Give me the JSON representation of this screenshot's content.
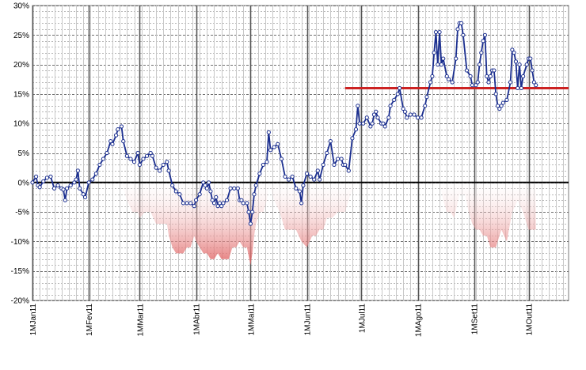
{
  "chart_data": {
    "type": "line",
    "y_ticks": [
      "30%",
      "25%",
      "20%",
      "15%",
      "10%",
      "5%",
      "0%",
      "-5%",
      "-10%",
      "-15%",
      "-20%"
    ],
    "ylim": [
      -20,
      30
    ],
    "x_ticks": [
      "1MJan11",
      "1MFev11",
      "1MMar11",
      "1MAbr11",
      "1MMai11",
      "1MJun11",
      "1MJul11",
      "1MAgo11",
      "1MSet11",
      "1MOut11"
    ],
    "xlim": [
      0,
      295
    ],
    "x_tick_positions": [
      0,
      31,
      59,
      90,
      120,
      151,
      181,
      212,
      243,
      273
    ],
    "grid": true,
    "reference_line": {
      "value": 16,
      "from_x": 172,
      "to_x": 295,
      "color": "#cc2222"
    },
    "colors": {
      "series": "#1a2e8f",
      "drawdown": "#e06060",
      "grid": "#7a7a7a",
      "reference": "#cc2222"
    },
    "series": [
      {
        "points": [
          [
            0,
            0
          ],
          [
            2,
            1
          ],
          [
            3,
            -0.5
          ],
          [
            4,
            -0.8
          ],
          [
            6,
            0.2
          ],
          [
            8,
            0.8
          ],
          [
            10,
            1
          ],
          [
            12,
            -1
          ],
          [
            14,
            -0.5
          ],
          [
            16,
            -1
          ],
          [
            17,
            -1.2
          ],
          [
            18,
            -3
          ],
          [
            19,
            -1
          ],
          [
            21,
            -0.5
          ],
          [
            23,
            0
          ],
          [
            24,
            0.5
          ],
          [
            25,
            2
          ],
          [
            26,
            -1
          ],
          [
            28,
            -2
          ],
          [
            29,
            -2.5
          ],
          [
            31,
            0
          ],
          [
            33,
            0.5
          ],
          [
            35,
            1.5
          ],
          [
            37,
            3
          ],
          [
            39,
            4
          ],
          [
            41,
            5
          ],
          [
            43,
            7
          ],
          [
            44,
            6.5
          ],
          [
            46,
            8
          ],
          [
            47,
            9
          ],
          [
            49,
            9.5
          ],
          [
            50,
            7
          ],
          [
            52,
            4.5
          ],
          [
            54,
            4
          ],
          [
            56,
            3.5
          ],
          [
            58,
            5
          ],
          [
            59,
            3
          ],
          [
            61,
            4
          ],
          [
            63,
            4.5
          ],
          [
            65,
            5
          ],
          [
            66,
            4.5
          ],
          [
            68,
            2.5
          ],
          [
            70,
            2
          ],
          [
            72,
            3
          ],
          [
            74,
            3.5
          ],
          [
            75,
            2
          ],
          [
            77,
            -0.5
          ],
          [
            79,
            -1.5
          ],
          [
            81,
            -2
          ],
          [
            83,
            -3.5
          ],
          [
            85,
            -3.5
          ],
          [
            87,
            -3.5
          ],
          [
            89,
            -4
          ],
          [
            90,
            -3
          ],
          [
            92,
            -2
          ],
          [
            94,
            0
          ],
          [
            95,
            -0.5
          ],
          [
            96,
            -1
          ],
          [
            97,
            0
          ],
          [
            98,
            -1.5
          ],
          [
            99,
            -3
          ],
          [
            100,
            -3.5
          ],
          [
            101,
            -2.5
          ],
          [
            102,
            -4
          ],
          [
            103,
            -3.5
          ],
          [
            104,
            -4
          ],
          [
            105,
            -3.5
          ],
          [
            107,
            -3
          ],
          [
            109,
            -1
          ],
          [
            111,
            -1
          ],
          [
            113,
            -1
          ],
          [
            114,
            -3
          ],
          [
            115,
            -3
          ],
          [
            116,
            -3.5
          ],
          [
            118,
            -3.5
          ],
          [
            119,
            -5
          ],
          [
            120,
            -7
          ],
          [
            121,
            -5
          ],
          [
            122,
            -2
          ],
          [
            123,
            -0.5
          ],
          [
            125,
            1.5
          ],
          [
            127,
            3
          ],
          [
            129,
            3.5
          ],
          [
            130,
            8.5
          ],
          [
            131,
            5.5
          ],
          [
            133,
            6
          ],
          [
            135,
            6.5
          ],
          [
            137,
            4
          ],
          [
            139,
            1
          ],
          [
            141,
            0.5
          ],
          [
            143,
            1
          ],
          [
            145,
            -1
          ],
          [
            147,
            -1.5
          ],
          [
            148,
            -3.5
          ],
          [
            149,
            -0.5
          ],
          [
            151,
            1.5
          ],
          [
            153,
            1
          ],
          [
            155,
            0.5
          ],
          [
            157,
            2
          ],
          [
            158,
            0.5
          ],
          [
            160,
            3
          ],
          [
            162,
            5
          ],
          [
            164,
            7
          ],
          [
            166,
            3
          ],
          [
            168,
            4
          ],
          [
            170,
            4
          ],
          [
            171,
            3
          ],
          [
            172,
            3
          ],
          [
            174,
            2
          ],
          [
            176,
            7.5
          ],
          [
            178,
            9
          ],
          [
            179,
            13
          ],
          [
            180,
            10
          ],
          [
            182,
            10
          ],
          [
            184,
            11
          ],
          [
            186,
            9.5
          ],
          [
            187,
            10
          ],
          [
            188,
            11.5
          ],
          [
            189,
            12
          ],
          [
            190,
            11
          ],
          [
            192,
            10
          ],
          [
            193,
            10
          ],
          [
            194,
            9.5
          ],
          [
            196,
            11
          ],
          [
            197,
            13
          ],
          [
            199,
            14
          ],
          [
            201,
            15
          ],
          [
            202,
            16
          ],
          [
            204,
            12.5
          ],
          [
            205,
            12
          ],
          [
            206,
            11
          ],
          [
            208,
            11.5
          ],
          [
            210,
            11.5
          ],
          [
            212,
            11
          ],
          [
            214,
            11
          ],
          [
            216,
            13
          ],
          [
            217,
            14.5
          ],
          [
            219,
            17
          ],
          [
            220,
            18
          ],
          [
            221,
            22
          ],
          [
            222,
            25.5
          ],
          [
            223,
            20
          ],
          [
            224,
            25.5
          ],
          [
            225,
            20
          ],
          [
            226,
            21
          ],
          [
            228,
            18
          ],
          [
            229,
            17.5
          ],
          [
            231,
            17
          ],
          [
            233,
            21
          ],
          [
            234,
            26
          ],
          [
            235,
            27
          ],
          [
            236,
            27
          ],
          [
            237,
            25
          ],
          [
            239,
            19
          ],
          [
            241,
            18
          ],
          [
            242,
            16.5
          ],
          [
            244,
            16.5
          ],
          [
            245,
            17
          ],
          [
            246,
            20
          ],
          [
            247,
            22
          ],
          [
            248,
            24
          ],
          [
            249,
            25
          ],
          [
            250,
            18
          ],
          [
            251,
            17
          ],
          [
            252,
            18
          ],
          [
            253,
            19
          ],
          [
            254,
            19
          ],
          [
            255,
            15
          ],
          [
            256,
            13
          ],
          [
            257,
            12.5
          ],
          [
            258,
            13
          ],
          [
            259,
            13.5
          ],
          [
            261,
            14
          ],
          [
            263,
            17
          ],
          [
            264,
            22.5
          ],
          [
            265,
            22
          ],
          [
            266,
            20.5
          ],
          [
            267,
            16
          ],
          [
            268,
            20
          ],
          [
            269,
            16
          ],
          [
            270,
            18
          ],
          [
            272,
            20
          ],
          [
            273,
            21
          ],
          [
            274,
            21
          ],
          [
            275,
            19
          ],
          [
            276,
            17
          ],
          [
            277,
            16.5
          ]
        ]
      }
    ],
    "drawdown_band": {
      "x": [
        49,
        52,
        55,
        58,
        59,
        62,
        65,
        68,
        71,
        74,
        75,
        77,
        79,
        81,
        83,
        85,
        87,
        89,
        90,
        92,
        94,
        96,
        98,
        100,
        102,
        104,
        106,
        108,
        110,
        112,
        114,
        116,
        118,
        120,
        121,
        122,
        123,
        125,
        127,
        129,
        130,
        133,
        136,
        139,
        142,
        145,
        148,
        151,
        154,
        156,
        158,
        160,
        162,
        165,
        168,
        171,
        172,
        175,
        178,
        181,
        184,
        187,
        190,
        193,
        196,
        199,
        202,
        205,
        208,
        211,
        214,
        217,
        220,
        222,
        224,
        226,
        228,
        230,
        232,
        235,
        238,
        240,
        242,
        244,
        246,
        248,
        250,
        252,
        255,
        258,
        261,
        264,
        267,
        270,
        273,
        276,
        277
      ],
      "dd": [
        0,
        -3,
        -5,
        -5,
        -6,
        -5,
        -5,
        -7,
        -7,
        -7,
        -9,
        -11,
        -12,
        -12,
        -12,
        -11,
        -11,
        -9,
        -10,
        -11,
        -12,
        -12,
        -13,
        -13,
        -12,
        -13,
        -13,
        -13,
        -11,
        -11,
        -10,
        -11,
        -11,
        -14,
        -12,
        -9,
        -7,
        -5,
        -5,
        -3,
        0,
        -3,
        -5,
        -8,
        -8,
        -8,
        -10,
        -11,
        -9,
        -9,
        -8,
        -8,
        -6,
        -6,
        -5,
        -5,
        -5,
        -2,
        0,
        0,
        0,
        0,
        0,
        0,
        0,
        0,
        0,
        0,
        0,
        0,
        0,
        0,
        0,
        0,
        0,
        -3,
        -5,
        -5,
        -6,
        -2,
        -2,
        -5,
        -7,
        -8,
        -8,
        -9,
        -9,
        -11,
        -11,
        -8,
        -10,
        -5,
        -3,
        -5,
        -8,
        -8,
        -8
      ]
    }
  }
}
